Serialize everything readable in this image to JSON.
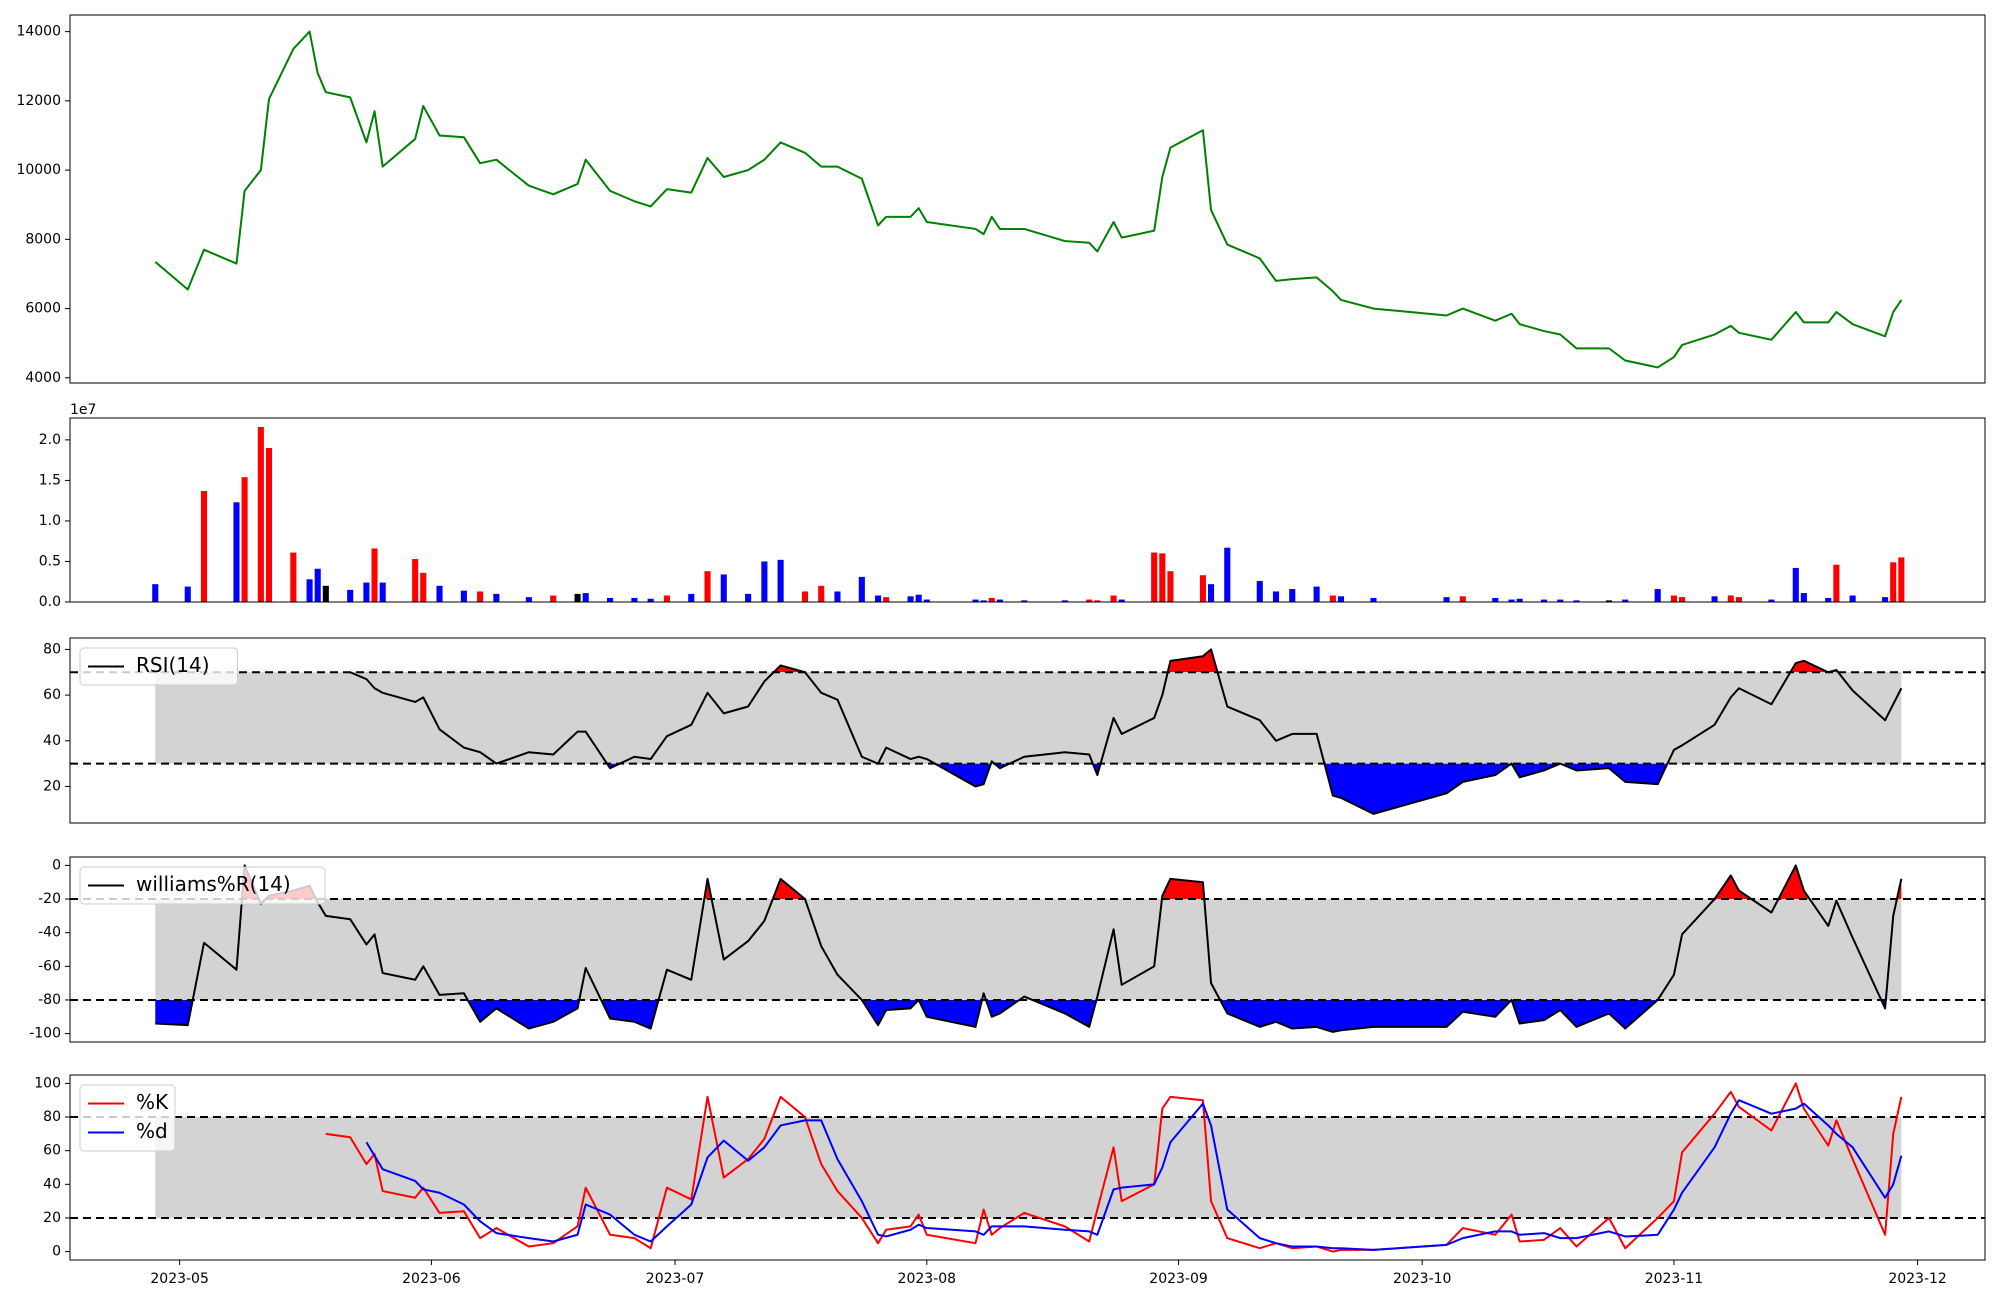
{
  "chart_data": [
    {
      "type": "line",
      "xlim": [
        107.5,
        343.3
      ],
      "ylim": [
        3850,
        14480
      ],
      "yticks": [
        4000,
        6000,
        8000,
        10000,
        12000,
        14000
      ],
      "x": [
        118,
        122,
        124,
        128,
        129,
        131,
        132,
        135,
        137,
        138,
        139,
        142,
        144,
        145,
        146,
        150,
        151,
        153,
        156,
        158,
        160,
        164,
        167,
        170,
        171,
        174,
        177,
        179,
        181,
        184,
        186,
        188,
        191,
        193,
        195,
        198,
        200,
        202,
        205,
        207,
        208,
        211,
        212,
        213,
        219,
        220,
        221,
        222,
        225,
        230,
        233,
        234,
        236,
        237,
        241,
        242,
        243,
        247,
        248,
        250,
        254,
        256,
        258,
        261,
        263,
        264,
        268,
        277,
        279,
        283,
        285,
        286,
        289,
        291,
        293,
        297,
        299,
        303,
        305,
        306,
        310,
        312,
        313,
        317,
        320,
        321,
        324,
        325,
        327,
        331,
        332,
        333
      ],
      "series": [
        {
          "color": "green",
          "values": [
            7350,
            6550,
            7700,
            7300,
            9400,
            10000,
            12050,
            13500,
            14000,
            12800,
            12250,
            12100,
            10800,
            11700,
            10100,
            10900,
            11850,
            11000,
            10950,
            10200,
            10300,
            9550,
            9300,
            9600,
            10300,
            9400,
            9100,
            8950,
            9450,
            9350,
            10350,
            9800,
            10000,
            10300,
            10800,
            10500,
            10100,
            10100,
            9750,
            8400,
            8650,
            8650,
            8900,
            8500,
            8300,
            8150,
            8650,
            8300,
            8300,
            7950,
            7900,
            7650,
            8500,
            8050,
            8250,
            9800,
            10650,
            11150,
            8850,
            7850,
            7450,
            6800,
            6850,
            6900,
            6500,
            6250,
            6000,
            5800,
            6000,
            5650,
            5850,
            5550,
            5350,
            5250,
            4850,
            4850,
            4500,
            4300,
            4600,
            4950,
            5250,
            5500,
            5300,
            5100,
            5900,
            5600,
            5600,
            5900,
            5550,
            5200,
            5900,
            6250
          ]
        }
      ]
    },
    {
      "type": "bar",
      "xlim": [
        107.5,
        343.3
      ],
      "ylim": [
        0,
        2.27
      ],
      "offset_label": "1e7",
      "yticks": [
        {
          "value": 0,
          "label": "0.0"
        },
        0.5,
        {
          "value": 1,
          "label": "1.0"
        },
        1.5,
        {
          "value": 2,
          "label": "2.0"
        }
      ],
      "x": [
        118,
        122,
        124,
        128,
        129,
        131,
        132,
        135,
        137,
        138,
        139,
        142,
        144,
        145,
        146,
        150,
        151,
        153,
        156,
        158,
        160,
        164,
        167,
        170,
        171,
        174,
        177,
        179,
        181,
        184,
        186,
        188,
        191,
        193,
        195,
        198,
        200,
        202,
        205,
        207,
        208,
        211,
        212,
        213,
        219,
        220,
        221,
        222,
        225,
        230,
        233,
        234,
        236,
        237,
        241,
        242,
        243,
        247,
        248,
        250,
        254,
        256,
        258,
        261,
        263,
        264,
        268,
        277,
        279,
        283,
        285,
        286,
        289,
        291,
        293,
        297,
        299,
        303,
        305,
        306,
        310,
        312,
        313,
        317,
        320,
        321,
        324,
        325,
        327,
        331,
        332,
        333
      ],
      "values": [
        0.22,
        0.19,
        1.37,
        1.23,
        1.54,
        2.16,
        1.9,
        0.61,
        0.28,
        0.41,
        0.2,
        0.15,
        0.24,
        0.66,
        0.24,
        0.53,
        0.36,
        0.2,
        0.14,
        0.13,
        0.1,
        0.06,
        0.08,
        0.1,
        0.11,
        0.05,
        0.05,
        0.04,
        0.08,
        0.1,
        0.38,
        0.34,
        0.1,
        0.5,
        0.52,
        0.13,
        0.2,
        0.13,
        0.31,
        0.08,
        0.06,
        0.07,
        0.09,
        0.03,
        0.03,
        0.02,
        0.05,
        0.03,
        0.02,
        0.02,
        0.03,
        0.02,
        0.08,
        0.03,
        0.61,
        0.6,
        0.38,
        0.33,
        0.22,
        0.67,
        0.26,
        0.13,
        0.16,
        0.19,
        0.08,
        0.07,
        0.05,
        0.06,
        0.07,
        0.05,
        0.03,
        0.04,
        0.03,
        0.03,
        0.02,
        0.02,
        0.03,
        0.16,
        0.08,
        0.06,
        0.07,
        0.08,
        0.06,
        0.03,
        0.42,
        0.11,
        0.05,
        0.46,
        0.08,
        0.06,
        0.49,
        0.55
      ],
      "bar_colors": [
        "blue",
        "blue",
        "red",
        "blue",
        "red",
        "red",
        "red",
        "red",
        "blue",
        "blue",
        "black",
        "blue",
        "blue",
        "red",
        "blue",
        "red",
        "red",
        "blue",
        "blue",
        "red",
        "blue",
        "blue",
        "red",
        "black",
        "blue",
        "blue",
        "blue",
        "blue",
        "red",
        "blue",
        "red",
        "blue",
        "blue",
        "blue",
        "blue",
        "red",
        "red",
        "blue",
        "blue",
        "blue",
        "red",
        "blue",
        "blue",
        "blue",
        "blue",
        "blue",
        "red",
        "blue",
        "blue",
        "blue",
        "red",
        "red",
        "red",
        "blue",
        "red",
        "red",
        "red",
        "red",
        "blue",
        "blue",
        "blue",
        "blue",
        "blue",
        "blue",
        "red",
        "blue",
        "blue",
        "blue",
        "red",
        "blue",
        "blue",
        "blue",
        "blue",
        "blue",
        "blue",
        "black",
        "blue",
        "blue",
        "red",
        "red",
        "blue",
        "red",
        "red",
        "blue",
        "blue",
        "blue",
        "blue",
        "red",
        "blue",
        "blue",
        "red",
        "red"
      ]
    },
    {
      "type": "line",
      "xlim": [
        107.5,
        343.3
      ],
      "ylim": [
        4,
        85
      ],
      "yticks": [
        20,
        40,
        60,
        80
      ],
      "legend": "upper left",
      "band": [
        30,
        70
      ],
      "band_color": "#d3d3d3",
      "fill_above": "red",
      "fill_below": "blue",
      "x": [
        118,
        122,
        124,
        128,
        129,
        131,
        132,
        135,
        137,
        138,
        139,
        142,
        144,
        145,
        146,
        150,
        151,
        153,
        156,
        158,
        160,
        164,
        167,
        170,
        171,
        174,
        177,
        179,
        181,
        184,
        186,
        188,
        191,
        193,
        195,
        198,
        200,
        202,
        205,
        207,
        208,
        211,
        212,
        213,
        219,
        220,
        221,
        222,
        225,
        230,
        233,
        234,
        236,
        237,
        241,
        242,
        243,
        247,
        248,
        250,
        254,
        256,
        258,
        261,
        263,
        264,
        268,
        277,
        279,
        283,
        285,
        286,
        289,
        291,
        293,
        297,
        299,
        303,
        305,
        306,
        310,
        312,
        313,
        317,
        320,
        321,
        324,
        325,
        327,
        331,
        332,
        333
      ],
      "series": [
        {
          "name": "RSI(14)",
          "color": "black",
          "values": [
            null,
            null,
            null,
            null,
            null,
            null,
            null,
            null,
            null,
            null,
            null,
            70,
            67,
            63,
            61,
            57,
            59,
            45,
            37,
            35,
            30,
            35,
            34,
            44,
            44,
            28,
            33,
            32,
            42,
            47,
            61,
            52,
            55,
            66,
            73,
            70,
            61,
            58,
            33,
            30,
            37,
            32,
            33,
            32,
            20,
            21,
            31,
            28,
            33,
            35,
            34,
            25,
            50,
            43,
            50,
            60,
            75,
            77,
            80,
            55,
            49,
            40,
            43,
            43,
            16,
            15,
            8,
            17,
            22,
            25,
            30,
            24,
            27,
            30,
            27,
            28,
            22,
            21,
            36,
            38,
            47,
            59,
            63,
            56,
            74,
            75,
            70,
            71,
            62,
            49,
            56,
            63
          ]
        }
      ]
    },
    {
      "type": "line",
      "xlim": [
        107.5,
        343.3
      ],
      "ylim": [
        -105,
        5
      ],
      "yticks": [
        -100,
        -80,
        -60,
        -40,
        -20,
        0
      ],
      "legend": "upper left",
      "band": [
        -80,
        -20
      ],
      "band_color": "#d3d3d3",
      "fill_above": "red",
      "fill_below": "blue",
      "x": [
        118,
        122,
        124,
        128,
        129,
        131,
        132,
        135,
        137,
        138,
        139,
        142,
        144,
        145,
        146,
        150,
        151,
        153,
        156,
        158,
        160,
        164,
        167,
        170,
        171,
        174,
        177,
        179,
        181,
        184,
        186,
        188,
        191,
        193,
        195,
        198,
        200,
        202,
        205,
        207,
        208,
        211,
        212,
        213,
        219,
        220,
        221,
        222,
        225,
        230,
        233,
        234,
        236,
        237,
        241,
        242,
        243,
        247,
        248,
        250,
        254,
        256,
        258,
        261,
        263,
        264,
        268,
        277,
        279,
        283,
        285,
        286,
        289,
        291,
        293,
        297,
        299,
        303,
        305,
        306,
        310,
        312,
        313,
        317,
        320,
        321,
        324,
        325,
        327,
        331,
        332,
        333
      ],
      "series": [
        {
          "name": "williams%R(14)",
          "color": "black",
          "values": [
            -94,
            -95,
            -46,
            -62,
            0,
            -23,
            -18,
            -15,
            -12,
            -22,
            -30,
            -32,
            -47,
            -41,
            -64,
            -68,
            -60,
            -77,
            -76,
            -93,
            -85,
            -97,
            -93,
            -85,
            -61,
            -91,
            -93,
            -97,
            -62,
            -68,
            -8,
            -56,
            -45,
            -33,
            -8,
            -20,
            -48,
            -65,
            -80,
            -95,
            -86,
            -85,
            -80,
            -90,
            -96,
            -76,
            -90,
            -88,
            -78,
            -88,
            -96,
            -78,
            -38,
            -71,
            -60,
            -18,
            -8,
            -10,
            -70,
            -88,
            -96,
            -93,
            -97,
            -96,
            -99,
            -98,
            -96,
            -96,
            -87,
            -90,
            -80,
            -94,
            -92,
            -86,
            -96,
            -88,
            -97,
            -80,
            -65,
            -41,
            -20,
            -6,
            -15,
            -28,
            0,
            -15,
            -36,
            -21,
            -43,
            -85,
            -30,
            -8
          ]
        }
      ]
    },
    {
      "type": "line",
      "xlim": [
        107.5,
        343.3
      ],
      "ylim": [
        -5,
        105
      ],
      "yticks": [
        0,
        20,
        40,
        60,
        80,
        100
      ],
      "legend": "upper left",
      "band": [
        20,
        80
      ],
      "band_color": "#d3d3d3",
      "xticks": [
        {
          "value": 121,
          "label": "2023-05"
        },
        {
          "value": 152,
          "label": "2023-06"
        },
        {
          "value": 182,
          "label": "2023-07"
        },
        {
          "value": 213,
          "label": "2023-08"
        },
        {
          "value": 244,
          "label": "2023-09"
        },
        {
          "value": 274,
          "label": "2023-10"
        },
        {
          "value": 305,
          "label": "2023-11"
        },
        {
          "value": 335,
          "label": "2023-12"
        }
      ],
      "x": [
        118,
        122,
        124,
        128,
        129,
        131,
        132,
        135,
        137,
        138,
        139,
        142,
        144,
        145,
        146,
        150,
        151,
        153,
        156,
        158,
        160,
        164,
        167,
        170,
        171,
        174,
        177,
        179,
        181,
        184,
        186,
        188,
        191,
        193,
        195,
        198,
        200,
        202,
        205,
        207,
        208,
        211,
        212,
        213,
        219,
        220,
        221,
        222,
        225,
        230,
        233,
        234,
        236,
        237,
        241,
        242,
        243,
        247,
        248,
        250,
        254,
        256,
        258,
        261,
        263,
        264,
        268,
        277,
        279,
        283,
        285,
        286,
        289,
        291,
        293,
        297,
        299,
        303,
        305,
        306,
        310,
        312,
        313,
        317,
        320,
        321,
        324,
        325,
        327,
        331,
        332,
        333
      ],
      "series": [
        {
          "name": "%K",
          "color": "red",
          "values": [
            null,
            null,
            null,
            null,
            null,
            null,
            null,
            null,
            null,
            null,
            70,
            68,
            52,
            58,
            36,
            32,
            38,
            23,
            24,
            8,
            14,
            3,
            5,
            15,
            38,
            10,
            8,
            2,
            38,
            31,
            92,
            44,
            55,
            67,
            92,
            80,
            52,
            36,
            20,
            5,
            13,
            15,
            22,
            10,
            5,
            25,
            10,
            14,
            23,
            15,
            6,
            25,
            62,
            30,
            40,
            85,
            92,
            90,
            30,
            8,
            2,
            5,
            2,
            3,
            0,
            1,
            1,
            4,
            14,
            10,
            22,
            6,
            7,
            14,
            3,
            20,
            2,
            20,
            30,
            59,
            82,
            95,
            86,
            72,
            100,
            85,
            63,
            78,
            55,
            10,
            70,
            92
          ]
        },
        {
          "name": "%d",
          "color": "blue",
          "values": [
            null,
            null,
            null,
            null,
            null,
            null,
            null,
            null,
            null,
            null,
            null,
            null,
            65,
            57,
            49,
            42,
            37,
            35,
            28,
            18,
            11,
            8,
            6,
            10,
            28,
            22,
            10,
            6,
            15,
            28,
            56,
            66,
            54,
            62,
            75,
            78,
            78,
            55,
            30,
            10,
            9,
            13,
            16,
            14,
            12,
            10,
            15,
            15,
            15,
            13,
            12,
            10,
            37,
            38,
            40,
            50,
            65,
            88,
            75,
            25,
            8,
            5,
            3,
            3,
            2,
            2,
            1,
            4,
            8,
            12,
            12,
            10,
            11,
            8,
            8,
            12,
            9,
            10,
            25,
            35,
            62,
            82,
            90,
            82,
            85,
            88,
            75,
            70,
            62,
            32,
            40,
            57
          ]
        }
      ]
    }
  ]
}
